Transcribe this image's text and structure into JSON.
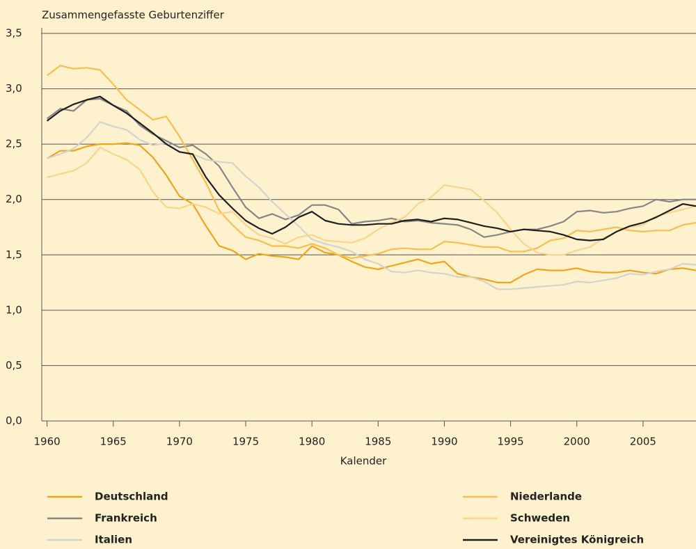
{
  "chart_data": {
    "type": "line",
    "title": "Zusammengefasste Geburtenziffer",
    "xlabel": "Kalender",
    "x": [
      1960,
      1961,
      1962,
      1963,
      1964,
      1965,
      1966,
      1967,
      1968,
      1969,
      1970,
      1971,
      1972,
      1973,
      1974,
      1975,
      1976,
      1977,
      1978,
      1979,
      1980,
      1981,
      1982,
      1983,
      1984,
      1985,
      1986,
      1987,
      1988,
      1989,
      1990,
      1991,
      1992,
      1993,
      1994,
      1995,
      1996,
      1997,
      1998,
      1999,
      2000,
      2001,
      2002,
      2003,
      2004,
      2005,
      2006,
      2007,
      2008,
      2009
    ],
    "xlim": [
      1959.6,
      2009
    ],
    "xticks": [
      1960,
      1965,
      1970,
      1975,
      1980,
      1985,
      1990,
      1995,
      2000,
      2005
    ],
    "ylim": [
      0,
      3.5
    ],
    "yticks": [
      {
        "value": 0,
        "label": "0,0"
      },
      {
        "value": 0.5,
        "label": "0,5"
      },
      {
        "value": 1,
        "label": "1,0"
      },
      {
        "value": 1.5,
        "label": "1,5"
      },
      {
        "value": 2,
        "label": "2,0"
      },
      {
        "value": 2.5,
        "label": "2,5"
      },
      {
        "value": 3,
        "label": "3,0"
      },
      {
        "value": 3.5,
        "label": "3,5"
      }
    ],
    "grid": true,
    "legend": "bottom",
    "series": [
      {
        "name": "Deutschland",
        "color": "#eea51c",
        "values": [
          2.37,
          2.44,
          2.44,
          2.48,
          2.5,
          2.5,
          2.51,
          2.49,
          2.38,
          2.22,
          2.03,
          1.96,
          1.76,
          1.58,
          1.54,
          1.46,
          1.51,
          1.49,
          1.48,
          1.46,
          1.58,
          1.52,
          1.5,
          1.44,
          1.39,
          1.37,
          1.4,
          1.43,
          1.46,
          1.42,
          1.44,
          1.33,
          1.3,
          1.28,
          1.25,
          1.25,
          1.32,
          1.37,
          1.36,
          1.36,
          1.38,
          1.35,
          1.34,
          1.34,
          1.36,
          1.34,
          1.33,
          1.37,
          1.38,
          1.36
        ]
      },
      {
        "name": "Frankreich",
        "color": "#858585",
        "values": [
          2.73,
          2.82,
          2.8,
          2.9,
          2.91,
          2.85,
          2.8,
          2.67,
          2.59,
          2.53,
          2.47,
          2.49,
          2.41,
          2.3,
          2.11,
          1.93,
          1.83,
          1.87,
          1.82,
          1.86,
          1.95,
          1.95,
          1.91,
          1.78,
          1.8,
          1.81,
          1.83,
          1.8,
          1.81,
          1.79,
          1.78,
          1.77,
          1.73,
          1.66,
          1.68,
          1.71,
          1.73,
          1.73,
          1.76,
          1.8,
          1.89,
          1.9,
          1.88,
          1.89,
          1.92,
          1.94,
          2.0,
          1.98,
          2.0,
          2.0
        ]
      },
      {
        "name": "Italien",
        "color": "#d3d3d0",
        "values": [
          2.37,
          2.41,
          2.46,
          2.56,
          2.7,
          2.66,
          2.63,
          2.54,
          2.49,
          2.51,
          2.43,
          2.41,
          2.36,
          2.34,
          2.33,
          2.21,
          2.11,
          1.98,
          1.87,
          1.76,
          1.64,
          1.6,
          1.57,
          1.53,
          1.46,
          1.42,
          1.35,
          1.34,
          1.36,
          1.34,
          1.33,
          1.3,
          1.3,
          1.26,
          1.19,
          1.19,
          1.2,
          1.21,
          1.22,
          1.23,
          1.26,
          1.25,
          1.27,
          1.29,
          1.33,
          1.32,
          1.35,
          1.37,
          1.42,
          1.41
        ]
      },
      {
        "name": "Niederlande",
        "color": "#f6bf4f",
        "values": [
          3.12,
          3.21,
          3.18,
          3.19,
          3.17,
          3.04,
          2.9,
          2.81,
          2.72,
          2.75,
          2.57,
          2.36,
          2.15,
          1.9,
          1.77,
          1.66,
          1.63,
          1.58,
          1.58,
          1.56,
          1.6,
          1.56,
          1.5,
          1.47,
          1.49,
          1.51,
          1.55,
          1.56,
          1.55,
          1.55,
          1.62,
          1.61,
          1.59,
          1.57,
          1.57,
          1.53,
          1.53,
          1.56,
          1.63,
          1.65,
          1.72,
          1.71,
          1.73,
          1.75,
          1.72,
          1.71,
          1.72,
          1.72,
          1.77,
          1.79
        ]
      },
      {
        "name": "Schweden",
        "color": "#f8d48c",
        "values": [
          2.2,
          2.23,
          2.26,
          2.33,
          2.47,
          2.41,
          2.36,
          2.27,
          2.07,
          1.93,
          1.92,
          1.96,
          1.93,
          1.87,
          1.89,
          1.77,
          1.68,
          1.65,
          1.6,
          1.66,
          1.68,
          1.63,
          1.62,
          1.61,
          1.65,
          1.73,
          1.79,
          1.84,
          1.96,
          2.02,
          2.13,
          2.11,
          2.09,
          1.99,
          1.88,
          1.73,
          1.6,
          1.52,
          1.5,
          1.5,
          1.54,
          1.57,
          1.65,
          1.71,
          1.75,
          1.77,
          1.85,
          1.88,
          1.91,
          1.94
        ]
      },
      {
        "name": "Vereinigtes Königreich",
        "color": "#1e1e1e",
        "values": [
          2.71,
          2.8,
          2.86,
          2.9,
          2.93,
          2.85,
          2.78,
          2.69,
          2.6,
          2.5,
          2.43,
          2.41,
          2.2,
          2.04,
          1.92,
          1.81,
          1.74,
          1.69,
          1.75,
          1.84,
          1.89,
          1.81,
          1.78,
          1.77,
          1.77,
          1.78,
          1.78,
          1.81,
          1.82,
          1.8,
          1.83,
          1.82,
          1.79,
          1.76,
          1.74,
          1.71,
          1.73,
          1.72,
          1.71,
          1.68,
          1.64,
          1.63,
          1.64,
          1.71,
          1.76,
          1.79,
          1.84,
          1.9,
          1.96,
          1.94
        ]
      }
    ]
  }
}
